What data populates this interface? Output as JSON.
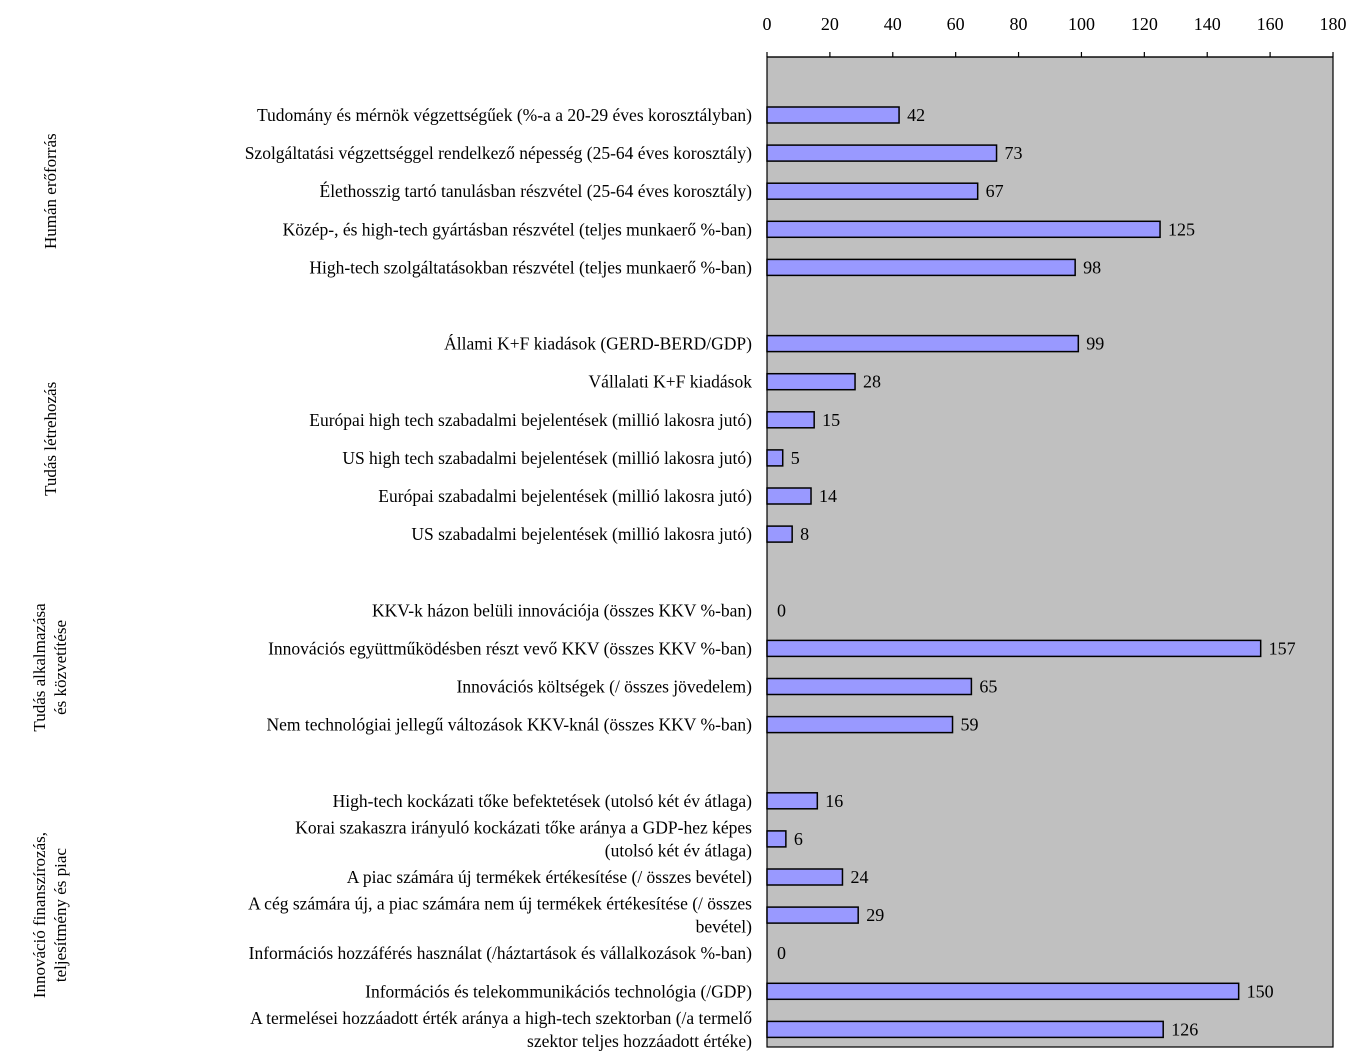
{
  "chart_data": {
    "type": "bar",
    "orientation": "horizontal",
    "xlim": [
      0,
      180
    ],
    "x_ticks": [
      "0",
      "20",
      "40",
      "60",
      "80",
      "100",
      "120",
      "140",
      "160",
      "180"
    ],
    "x_axis_position": "top",
    "grid": false,
    "legend": "none",
    "plot_background": "#C0C0C0",
    "bar_color": "#9999FF",
    "bar_edge_color": "#000000",
    "groups": [
      {
        "label": [
          "Humán erőforrás"
        ],
        "first_row": 0,
        "last_row": 4
      },
      {
        "label": [
          "Tudás létrehozás"
        ],
        "first_row": 6,
        "last_row": 11
      },
      {
        "label": [
          "Tudás alkalmazása",
          "és közvetítése"
        ],
        "first_row": 13,
        "last_row": 16
      },
      {
        "label": [
          "Innováció finanszírozás,",
          "teljesítmény és piac"
        ],
        "first_row": 18,
        "last_row": 24
      }
    ],
    "rows": [
      {
        "label": [
          "Tudomány és mérnök végzettségűek (%-a a 20-29 éves korosztályban)"
        ],
        "value": 42,
        "value_label": "42"
      },
      {
        "label": [
          "Szolgáltatási végzettséggel rendelkező népesség (25-64 éves korosztály)"
        ],
        "value": 73,
        "value_label": "73"
      },
      {
        "label": [
          "Élethosszig tartó tanulásban részvétel (25-64 éves korosztály)"
        ],
        "value": 67,
        "value_label": "67"
      },
      {
        "label": [
          "Közép-, és high-tech gyártásban részvétel (teljes munkaerő %-ban)"
        ],
        "value": 125,
        "value_label": "125"
      },
      {
        "label": [
          "High-tech szolgáltatásokban részvétel (teljes munkaerő %-ban)"
        ],
        "value": 98,
        "value_label": "98"
      },
      {
        "label": [],
        "value": null,
        "value_label": ""
      },
      {
        "label": [
          "Állami K+F kiadások (GERD-BERD/GDP)"
        ],
        "value": 99,
        "value_label": "99"
      },
      {
        "label": [
          "Vállalati K+F kiadások"
        ],
        "value": 28,
        "value_label": "28"
      },
      {
        "label": [
          "Európai high tech szabadalmi bejelentések (millió lakosra jutó)"
        ],
        "value": 15,
        "value_label": "15"
      },
      {
        "label": [
          "US high tech szabadalmi bejelentések (millió lakosra jutó)"
        ],
        "value": 5,
        "value_label": "5"
      },
      {
        "label": [
          "Európai szabadalmi bejelentések (millió lakosra jutó)"
        ],
        "value": 14,
        "value_label": "14"
      },
      {
        "label": [
          "US szabadalmi bejelentések (millió lakosra jutó)"
        ],
        "value": 8,
        "value_label": "8"
      },
      {
        "label": [],
        "value": null,
        "value_label": ""
      },
      {
        "label": [
          "KKV-k házon belüli innovációja (összes KKV %-ban)"
        ],
        "value": 0,
        "value_label": "0"
      },
      {
        "label": [
          "Innovációs együttműködésben részt vevő KKV (összes KKV %-ban)"
        ],
        "value": 157,
        "value_label": "157"
      },
      {
        "label": [
          "Innovációs költségek (/ összes jövedelem)"
        ],
        "value": 65,
        "value_label": "65"
      },
      {
        "label": [
          "Nem technológiai jellegű változások KKV-knál (összes KKV %-ban)"
        ],
        "value": 59,
        "value_label": "59"
      },
      {
        "label": [],
        "value": null,
        "value_label": ""
      },
      {
        "label": [
          "High-tech kockázati tőke befektetések (utolsó két év átlaga)"
        ],
        "value": 16,
        "value_label": "16"
      },
      {
        "label": [
          "Korai szakaszra irányuló kockázati tőke aránya a GDP-hez képes",
          "(utolsó két év átlaga)"
        ],
        "value": 6,
        "value_label": "6"
      },
      {
        "label": [
          "A piac számára új termékek értékesítése (/ összes bevétel)"
        ],
        "value": 24,
        "value_label": "24"
      },
      {
        "label": [
          "A cég számára új, a piac számára nem új termékek értékesítése (/ összes",
          "bevétel)"
        ],
        "value": 29,
        "value_label": "29"
      },
      {
        "label": [
          "Információs hozzáférés használat (/háztartások és vállalkozások %-ban)"
        ],
        "value": 0,
        "value_label": "0"
      },
      {
        "label": [
          "Információs és telekommunikációs technológia (/GDP)"
        ],
        "value": 150,
        "value_label": "150"
      },
      {
        "label": [
          "A termelései hozzáadott érték aránya a high-tech szektorban (/a termelő",
          "szektor teljes hozzáadott értéke)"
        ],
        "value": 126,
        "value_label": "126"
      }
    ]
  }
}
